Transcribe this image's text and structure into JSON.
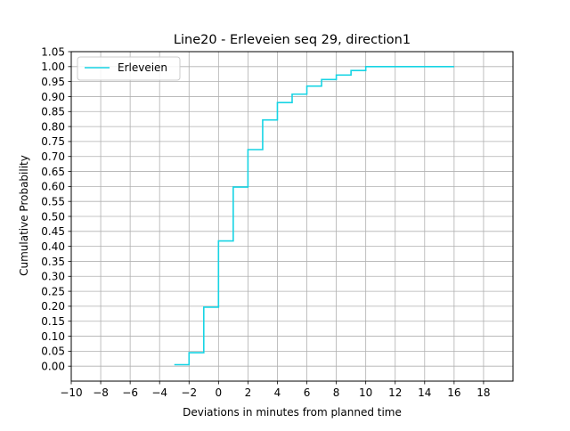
{
  "chart_data": {
    "type": "line",
    "title": "Line20 - Erleveien seq 29, direction1",
    "xlabel": "Deviations in minutes from planned time",
    "ylabel": "Cumulative Probability",
    "xlim": [
      -10,
      20
    ],
    "ylim": [
      -0.05,
      1.05
    ],
    "xticks": [
      -10,
      -8,
      -6,
      -4,
      -2,
      0,
      2,
      4,
      6,
      8,
      10,
      12,
      14,
      16,
      18
    ],
    "yticks": [
      0.0,
      0.05,
      0.1,
      0.15,
      0.2,
      0.25,
      0.3,
      0.35,
      0.4,
      0.45,
      0.5,
      0.55,
      0.6,
      0.65,
      0.7,
      0.75,
      0.8,
      0.85,
      0.9,
      0.95,
      1.0,
      1.05
    ],
    "grid": true,
    "legend_position": "top-left",
    "step": "post",
    "series": [
      {
        "name": "Erleveien",
        "color": "#17d4e4",
        "x": [
          -3,
          -2,
          -1,
          0,
          1,
          2,
          3,
          4,
          5,
          6,
          7,
          8,
          9,
          10,
          16
        ],
        "y": [
          0.005,
          0.045,
          0.197,
          0.418,
          0.598,
          0.723,
          0.822,
          0.88,
          0.908,
          0.935,
          0.957,
          0.972,
          0.987,
          1.0,
          1.0
        ]
      }
    ]
  }
}
